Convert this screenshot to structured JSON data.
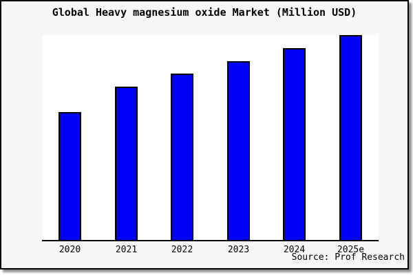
{
  "header": {
    "title": "Global Heavy magnesium oxide Market (Million USD)"
  },
  "footer": {
    "source": "Source: Prof Research"
  },
  "colors": {
    "frame_bg": "#f7f7f7",
    "frame_border": "#000000",
    "plot_bg": "#ffffff",
    "axis": "#000000",
    "bar_fill": "#0000f5",
    "bar_border": "#000000",
    "shadow": "#8f8f8f"
  },
  "chart_data": {
    "type": "bar",
    "title": "Global Heavy magnesium oxide Market (Million USD)",
    "categories": [
      "2020",
      "2021",
      "2022",
      "2023",
      "2024",
      "2025e"
    ],
    "values": [
      186,
      223,
      242,
      260,
      279,
      298
    ],
    "units": "relative bar height in px; chart shows no y-axis, gridlines or value labels",
    "xlabel": "",
    "ylabel": "",
    "ylim": [
      0,
      298
    ],
    "grid": false,
    "legend": false,
    "source": "Source: Prof Research"
  }
}
